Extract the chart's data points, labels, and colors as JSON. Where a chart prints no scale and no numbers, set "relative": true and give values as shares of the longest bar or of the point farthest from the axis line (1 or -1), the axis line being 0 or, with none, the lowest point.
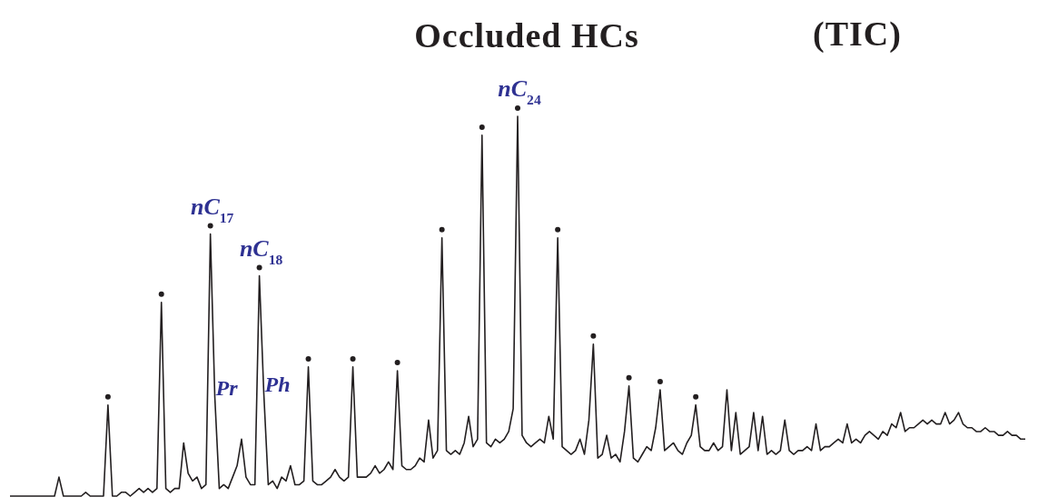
{
  "chart_data": {
    "type": "line",
    "relative": true,
    "title": "Occluded HCs",
    "subtitle": "(TIC)",
    "categories": [
      null,
      null,
      null,
      null,
      null,
      null,
      null,
      null,
      null,
      null,
      null,
      null,
      null,
      null,
      null,
      null,
      null,
      null,
      null,
      null,
      null,
      null,
      null,
      null,
      null,
      null,
      null,
      null,
      null,
      null,
      null,
      null,
      null,
      null,
      null,
      null,
      null,
      null,
      null,
      null,
      null,
      null,
      null,
      null,
      null,
      null,
      null,
      null,
      null,
      null,
      null,
      null,
      null,
      null,
      null,
      null,
      null,
      null,
      null,
      null,
      null,
      null,
      null,
      null,
      null,
      null,
      null,
      null,
      null,
      null,
      null,
      null,
      null,
      null,
      null,
      null,
      null,
      null,
      null,
      null,
      null,
      null,
      null,
      null,
      null,
      null,
      null,
      null,
      null,
      null,
      null,
      null,
      null,
      null,
      null,
      null,
      null,
      null,
      null,
      null,
      null,
      null,
      null,
      null,
      null,
      null,
      null,
      null,
      null,
      null,
      null,
      null,
      null,
      null,
      null,
      null,
      null,
      null,
      null,
      null,
      null,
      null,
      null,
      null,
      null,
      null,
      null,
      null,
      null,
      null,
      null,
      null,
      null,
      null,
      null,
      null,
      null,
      null,
      null,
      null,
      null,
      null,
      null,
      null,
      null,
      null,
      null,
      null,
      null,
      null,
      null,
      null,
      null,
      null,
      null,
      null,
      null,
      null,
      null,
      null,
      null,
      null,
      null,
      null,
      null,
      null,
      null,
      null,
      null,
      null,
      null,
      null,
      null,
      null,
      null,
      null,
      null,
      null,
      null,
      null,
      null,
      null,
      null,
      null,
      null,
      null,
      null,
      null,
      null,
      null,
      null,
      null,
      null,
      null,
      null,
      null,
      null,
      null,
      null,
      null,
      null,
      null,
      null,
      null,
      null,
      null,
      null,
      null,
      null,
      null,
      null,
      null,
      null,
      null,
      null,
      null,
      null,
      null,
      null,
      null,
      null,
      null,
      null,
      null,
      null,
      null,
      null,
      null,
      null
    ],
    "annotations": [
      "nC$_{17}$",
      "Pr",
      "nC$_{18}$",
      "Ph",
      "nC$_{24}$"
    ],
    "series": [
      {
        "color": "#231f20",
        "values": [
          0,
          0,
          0,
          0,
          0,
          0,
          0,
          0,
          0,
          0,
          0,
          0.05,
          0,
          0,
          0,
          0,
          0,
          0.01,
          0,
          0,
          0,
          0,
          0.24,
          0,
          0,
          0.01,
          0.01,
          0,
          0.01,
          0.02,
          0.01,
          0.02,
          0.01,
          0.02,
          0.51,
          0.02,
          0.01,
          0.02,
          0.02,
          0.14,
          0.06,
          0.04,
          0.05,
          0.02,
          0.03,
          0.69,
          0.26,
          0.02,
          0.03,
          0.02,
          0.05,
          0.08,
          0.15,
          0.05,
          0.03,
          0.03,
          0.58,
          0.27,
          0.03,
          0.04,
          0.02,
          0.05,
          0.04,
          0.08,
          0.03,
          0.03,
          0.04,
          0.34,
          0.04,
          0.03,
          0.03,
          0.04,
          0.05,
          0.07,
          0.05,
          0.04,
          0.05,
          0.34,
          0.05,
          0.05,
          0.05,
          0.06,
          0.08,
          0.06,
          0.07,
          0.09,
          0.07,
          0.33,
          0.08,
          0.07,
          0.07,
          0.08,
          0.1,
          0.09,
          0.2,
          0.1,
          0.12,
          0.68,
          0.12,
          0.11,
          0.12,
          0.11,
          0.14,
          0.21,
          0.13,
          0.15,
          0.95,
          0.14,
          0.13,
          0.15,
          0.14,
          0.15,
          0.17,
          0.23,
          1,
          0.16,
          0.14,
          0.13,
          0.14,
          0.15,
          0.14,
          0.21,
          0.15,
          0.68,
          0.13,
          0.12,
          0.11,
          0.12,
          0.15,
          0.11,
          0.2,
          0.4,
          0.1,
          0.11,
          0.16,
          0.1,
          0.11,
          0.09,
          0.17,
          0.29,
          0.1,
          0.09,
          0.11,
          0.13,
          0.12,
          0.18,
          0.28,
          0.12,
          0.13,
          0.14,
          0.12,
          0.11,
          0.14,
          0.16,
          0.24,
          0.13,
          0.12,
          0.12,
          0.14,
          0.12,
          0.13,
          0.28,
          0.12,
          0.22,
          0.11,
          0.12,
          0.13,
          0.22,
          0.12,
          0.21,
          0.11,
          0.12,
          0.11,
          0.12,
          0.2,
          0.12,
          0.11,
          0.12,
          0.12,
          0.13,
          0.12,
          0.19,
          0.12,
          0.13,
          0.13,
          0.14,
          0.15,
          0.14,
          0.19,
          0.14,
          0.15,
          0.14,
          0.16,
          0.17,
          0.16,
          0.15,
          0.17,
          0.16,
          0.19,
          0.18,
          0.22,
          0.17,
          0.18,
          0.18,
          0.19,
          0.2,
          0.19,
          0.2,
          0.19,
          0.19,
          0.22,
          0.19,
          0.2,
          0.22,
          0.19,
          0.18,
          0.18,
          0.17,
          0.17,
          0.18,
          0.17,
          0.17,
          0.16,
          0.16,
          0.17,
          0.16,
          0.16,
          0.15,
          0.15
        ]
      }
    ]
  }
}
